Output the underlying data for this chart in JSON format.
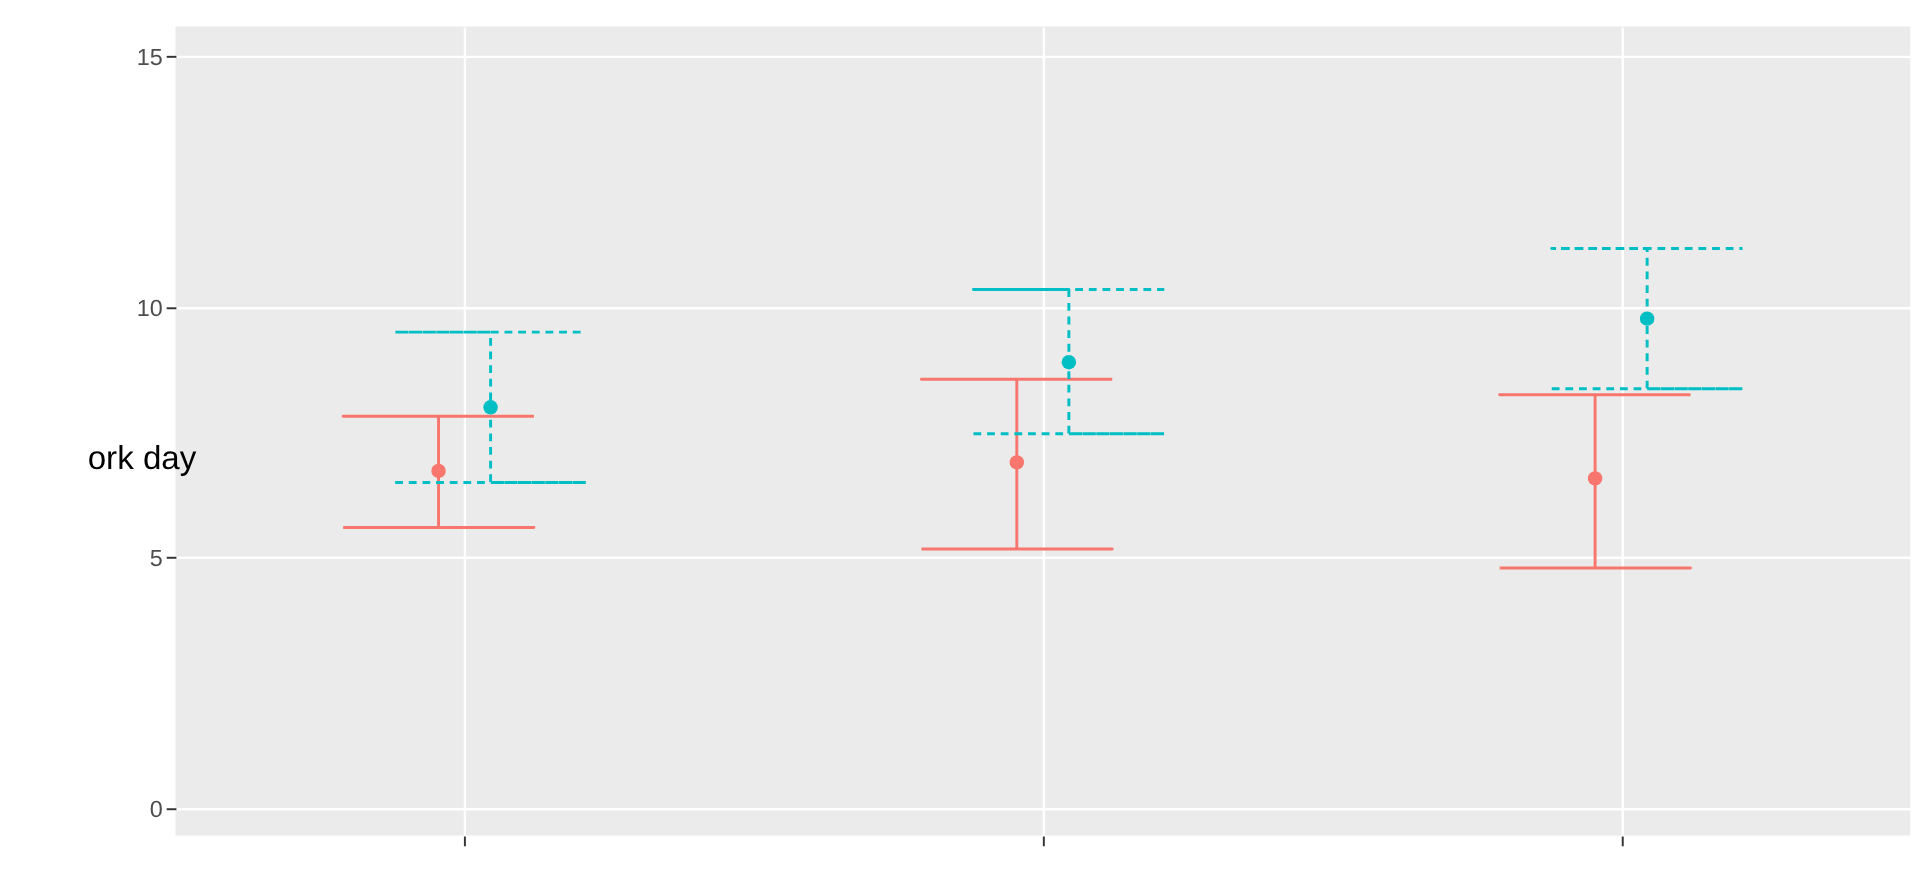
{
  "chart_data": {
    "type": "scatter",
    "categories": [
      null,
      null,
      null
    ],
    "series": [
      {
        "color": "#f8766d",
        "values": [
          6.73,
          6.9,
          6.58
        ],
        "errors": [
          [
            5.6,
            7.82
          ],
          [
            5.17,
            8.56
          ],
          [
            4.79,
            8.25
          ]
        ],
        "line_style": "solid"
      },
      {
        "color": "#00bfc4",
        "values": [
          8.0,
          8.9,
          9.77
        ],
        "errors": [
          [
            6.5,
            9.5
          ],
          [
            7.47,
            10.35
          ],
          [
            8.37,
            11.17
          ]
        ],
        "line_style": "dashed"
      }
    ],
    "ylim": [
      -0.55,
      15.6
    ],
    "yticks": [
      0,
      5,
      10,
      15
    ],
    "grid": true,
    "legend": false,
    "tick_labels": "y",
    "annotations": [
      "ork day"
    ]
  }
}
